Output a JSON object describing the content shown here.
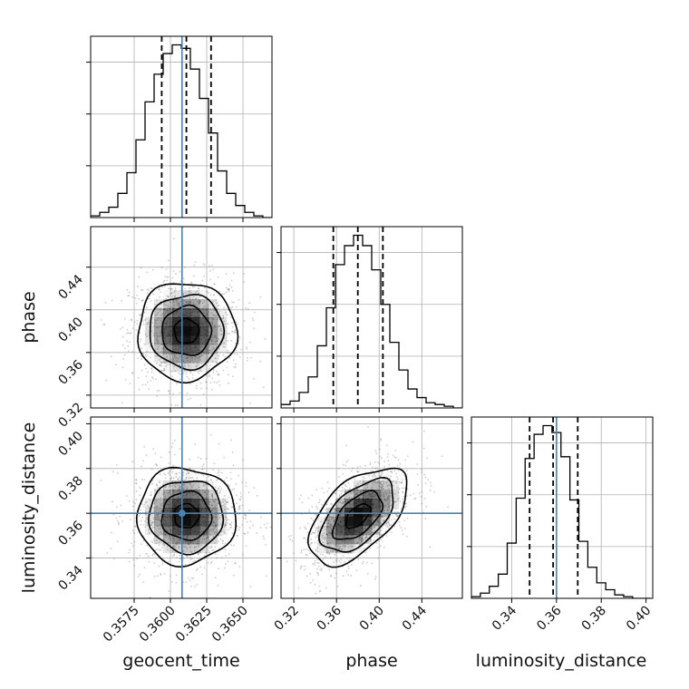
{
  "chart_data": {
    "type": "corner",
    "parameters": [
      "geocent_time",
      "phase",
      "luminosity_distance"
    ],
    "axis_labels": {
      "geocent_time": "geocent_time",
      "phase": "phase",
      "luminosity_distance": "luminosity_distance"
    },
    "ranges": {
      "geocent_time": [
        0.3545,
        0.367
      ],
      "phase": [
        0.308,
        0.478
      ],
      "luminosity_distance": [
        0.322,
        0.403
      ]
    },
    "ticks": {
      "geocent_time": {
        "values": [
          0.3575,
          0.36,
          0.3625,
          0.365
        ],
        "labels": [
          "0.3575",
          "0.3600",
          "0.3625",
          "0.3650"
        ]
      },
      "phase": {
        "values": [
          0.32,
          0.36,
          0.4,
          0.44
        ],
        "labels": [
          "0.32",
          "0.36",
          "0.40",
          "0.44"
        ]
      },
      "luminosity_distance": {
        "values": [
          0.34,
          0.36,
          0.38,
          0.4
        ],
        "labels": [
          "0.34",
          "0.36",
          "0.38",
          "0.40"
        ]
      }
    },
    "truths": {
      "geocent_time": 0.3608,
      "luminosity_distance": 0.36
    },
    "quantiles": {
      "geocent_time": [
        0.3594,
        0.3611,
        0.3628
      ],
      "phase": [
        0.357,
        0.38,
        0.4035
      ],
      "luminosity_distance": [
        0.348,
        0.3585,
        0.3695
      ]
    },
    "histograms": {
      "geocent_time": {
        "edges": [
          0.3545,
          0.355125,
          0.35575,
          0.356375,
          0.357,
          0.357625,
          0.35825,
          0.358875,
          0.3595,
          0.360125,
          0.36075,
          0.361375,
          0.362,
          0.362625,
          0.36325,
          0.363875,
          0.3645,
          0.365125,
          0.36575,
          0.366375,
          0.367
        ],
        "counts": [
          1,
          3,
          6,
          14,
          26,
          45,
          67,
          83,
          95,
          100,
          98,
          86,
          69,
          49,
          27,
          14,
          7,
          3,
          1,
          0
        ]
      },
      "phase": {
        "edges": [
          0.308,
          0.3165,
          0.325,
          0.3335,
          0.342,
          0.3505,
          0.359,
          0.3675,
          0.376,
          0.3845,
          0.393,
          0.4015,
          0.41,
          0.4185,
          0.427,
          0.4355,
          0.444,
          0.4525,
          0.461,
          0.4695,
          0.478
        ],
        "counts": [
          2,
          4,
          9,
          18,
          36,
          58,
          83,
          94,
          100,
          94,
          80,
          60,
          38,
          22,
          11,
          6,
          3,
          2,
          1,
          0
        ]
      },
      "luminosity_distance": {
        "edges": [
          0.322,
          0.326,
          0.33,
          0.334,
          0.338,
          0.342,
          0.346,
          0.35,
          0.354,
          0.358,
          0.362,
          0.366,
          0.37,
          0.374,
          0.378,
          0.382,
          0.386,
          0.39,
          0.394,
          0.398,
          0.402
        ],
        "counts": [
          1,
          3,
          7,
          14,
          32,
          58,
          81,
          95,
          100,
          96,
          82,
          57,
          33,
          18,
          9,
          5,
          2,
          1,
          0,
          0
        ]
      }
    },
    "joint_2d": [
      {
        "x": "geocent_time",
        "y": "phase",
        "center": [
          0.3611,
          0.38
        ],
        "sigma": [
          0.0017,
          0.023
        ],
        "rho": 0.0
      },
      {
        "x": "geocent_time",
        "y": "luminosity_distance",
        "center": [
          0.3611,
          0.3588
        ],
        "sigma": [
          0.0017,
          0.0108
        ],
        "rho": 0.0
      },
      {
        "x": "phase",
        "y": "luminosity_distance",
        "center": [
          0.38,
          0.3588
        ],
        "sigma": [
          0.023,
          0.0108
        ],
        "rho": 0.55
      }
    ],
    "contour_levels_sigma": [
      0.5,
      1.0,
      1.5,
      2.0
    ],
    "colors": {
      "hist": "#000000",
      "truth": "#4682b4",
      "grid": "#b0b0b0",
      "points": "#6e6e6e",
      "density": "#000000"
    }
  }
}
